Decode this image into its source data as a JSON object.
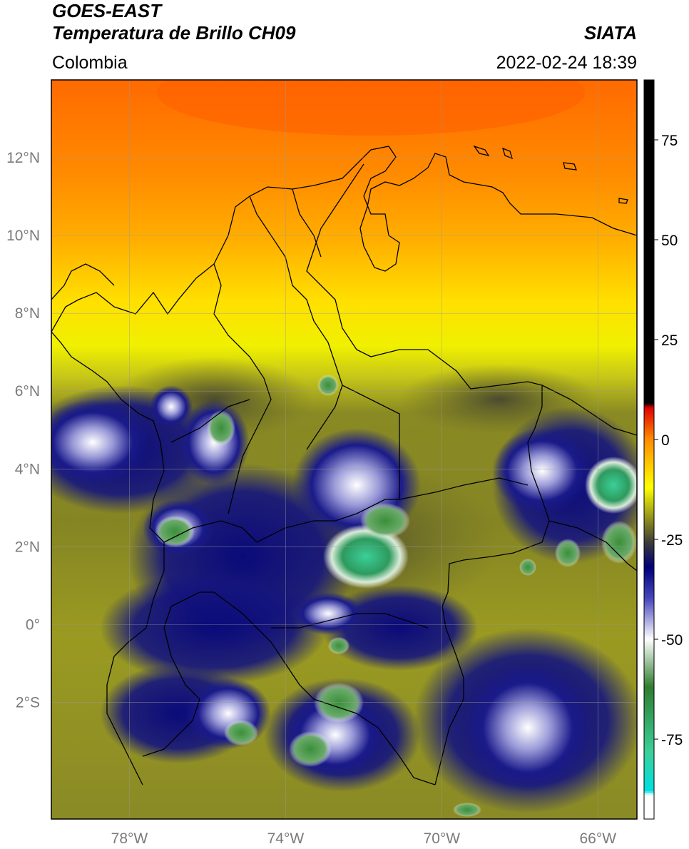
{
  "header": {
    "satellite": "GOES-EAST",
    "product": "Temperatura de Brillo CH09",
    "region": "Colombia",
    "brand": "SIATA",
    "timestamp": "2022-02-24 18:39"
  },
  "map": {
    "lon_range": [
      -80,
      -65
    ],
    "lat_range": [
      -5,
      14
    ],
    "lat_ticks": [
      {
        "value": 12,
        "label": "12°N"
      },
      {
        "value": 10,
        "label": "10°N"
      },
      {
        "value": 8,
        "label": "8°N"
      },
      {
        "value": 6,
        "label": "6°N"
      },
      {
        "value": 4,
        "label": "4°N"
      },
      {
        "value": 2,
        "label": "2°N"
      },
      {
        "value": 0,
        "label": "0°"
      },
      {
        "value": -2,
        "label": "2°S"
      }
    ],
    "lon_ticks": [
      {
        "value": -78,
        "label": "78°W"
      },
      {
        "value": -74,
        "label": "74°W"
      },
      {
        "value": -70,
        "label": "70°W"
      },
      {
        "value": -66,
        "label": "66°W"
      }
    ],
    "gridlines": true
  },
  "colorbar": {
    "range": [
      -95,
      90
    ],
    "ticks": [
      {
        "value": 75,
        "label": "75"
      },
      {
        "value": 50,
        "label": "50"
      },
      {
        "value": 25,
        "label": "25"
      },
      {
        "value": 0,
        "label": "0"
      },
      {
        "value": -25,
        "label": "-25"
      },
      {
        "value": -50,
        "label": "-50"
      },
      {
        "value": -75,
        "label": "-75"
      }
    ],
    "stops": [
      {
        "value": 90,
        "color": "#000000"
      },
      {
        "value": 9,
        "color": "#000000"
      },
      {
        "value": 8,
        "color": "#e00000"
      },
      {
        "value": 0,
        "color": "#ff8c00"
      },
      {
        "value": -12,
        "color": "#ffff00"
      },
      {
        "value": -20,
        "color": "#8c8c20"
      },
      {
        "value": -26,
        "color": "#3a3a3a"
      },
      {
        "value": -32,
        "color": "#00007a"
      },
      {
        "value": -40,
        "color": "#4a4abf"
      },
      {
        "value": -50,
        "color": "#ffffff"
      },
      {
        "value": -62,
        "color": "#2e7d2e"
      },
      {
        "value": -78,
        "color": "#3bcf99"
      },
      {
        "value": -88,
        "color": "#00e0e0"
      },
      {
        "value": -89,
        "color": "#ffffff"
      },
      {
        "value": -95,
        "color": "#ffffff"
      }
    ]
  }
}
